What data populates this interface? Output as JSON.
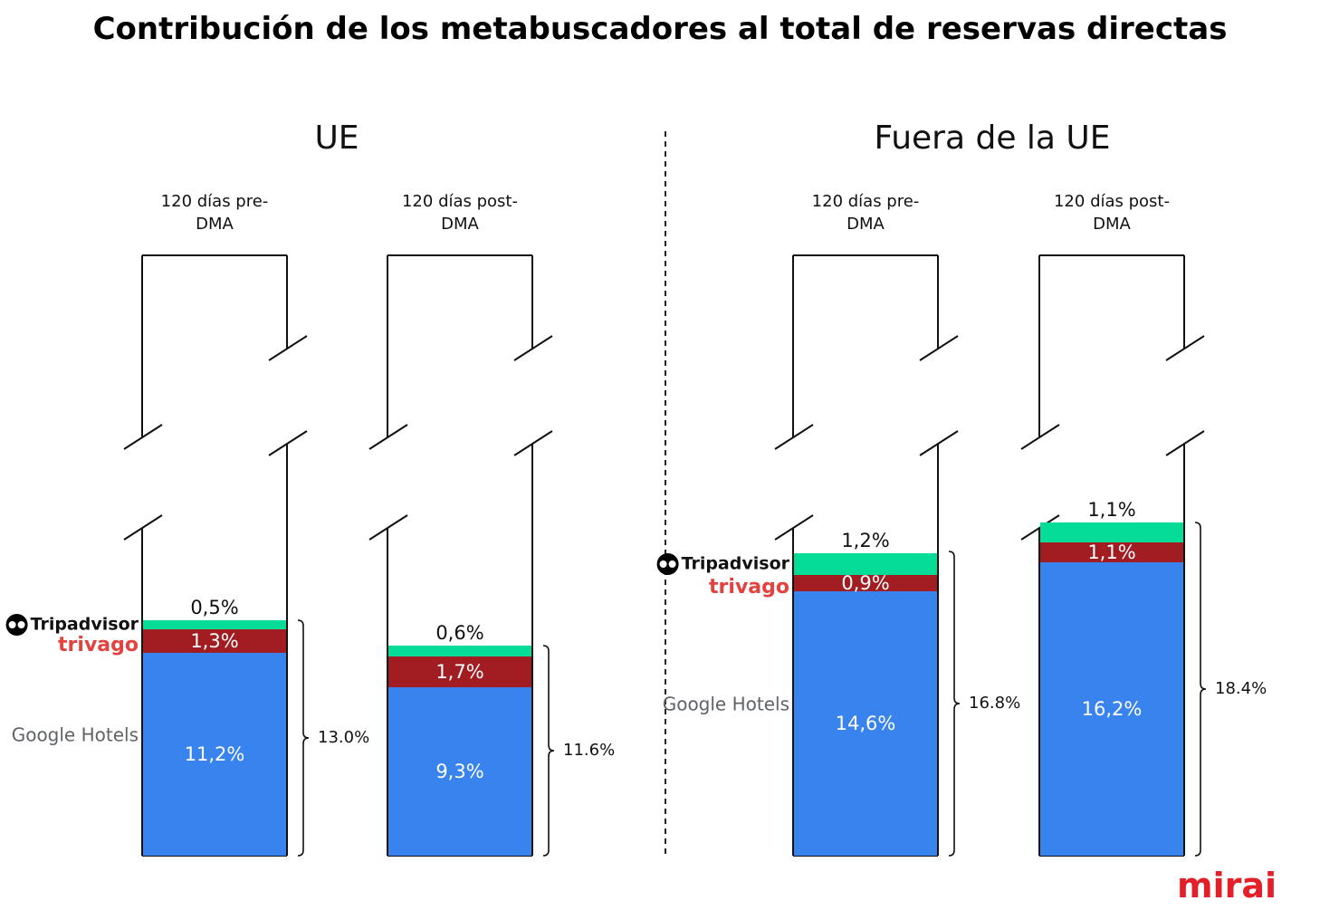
{
  "title": "Contribución de los metabuscadores al total de reservas directas",
  "brand": "mirai",
  "chart_data": [
    {
      "type": "bar",
      "stacked": true,
      "title": "UE",
      "categories": [
        "120 días pre-DMA",
        "120 días post-DMA"
      ],
      "series": [
        {
          "name": "Google Hotels",
          "color": "#3883ee",
          "values": [
            11.2,
            9.3
          ],
          "value_labels": [
            "11,2%",
            "9,3%"
          ]
        },
        {
          "name": "trivago",
          "color": "#a11d21",
          "values": [
            1.3,
            1.7
          ],
          "value_labels": [
            "1,3%",
            "1,7%"
          ]
        },
        {
          "name": "Tripadvisor",
          "color": "#05dc97",
          "values": [
            0.5,
            0.6
          ],
          "value_labels": [
            "0,5%",
            "0,6%"
          ]
        }
      ],
      "totals": [
        {
          "value": 13.0,
          "label": "13.0%"
        },
        {
          "value": 11.6,
          "label": "11.6%"
        }
      ]
    },
    {
      "type": "bar",
      "stacked": true,
      "title": "Fuera de la UE",
      "categories": [
        "120 días pre-DMA",
        "120 días post-DMA"
      ],
      "series": [
        {
          "name": "Google Hotels",
          "color": "#3883ee",
          "values": [
            14.6,
            16.2
          ],
          "value_labels": [
            "14,6%",
            "16,2%"
          ]
        },
        {
          "name": "trivago",
          "color": "#a11d21",
          "values": [
            0.9,
            1.1
          ],
          "value_labels": [
            "0,9%",
            "1,1%"
          ]
        },
        {
          "name": "Tripadvisor",
          "color": "#05dc97",
          "values": [
            1.2,
            1.1
          ],
          "value_labels": [
            "1,2%",
            "1,1%"
          ]
        }
      ],
      "totals": [
        {
          "value": 16.8,
          "label": "16.8%"
        },
        {
          "value": 18.4,
          "label": "18.4%"
        }
      ]
    }
  ]
}
